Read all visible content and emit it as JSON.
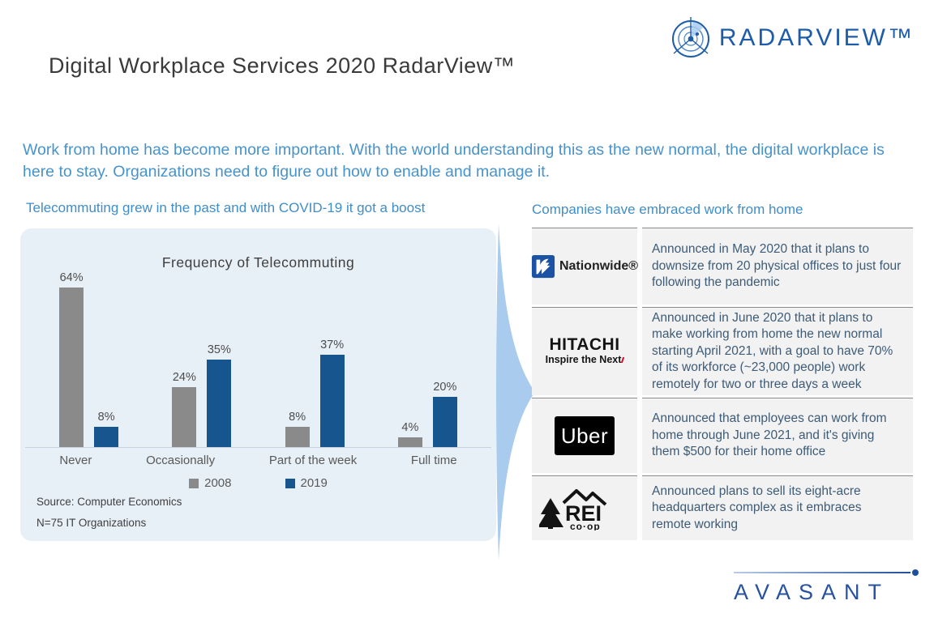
{
  "page": {
    "title": "Digital Workplace Services 2020 RadarView™",
    "intro": "Work from home has become more important. With the world understanding this as the new normal, the digital workplace is here to stay. Organizations need to figure out how to enable and manage it.",
    "left_heading": "Telecommuting grew in the past and with COVID-19 it got a boost",
    "right_heading": "Companies have embraced work from home"
  },
  "brand": {
    "radarview_logo_text": "RADARVIEW™",
    "avasant_logo_text": "AVASANT"
  },
  "chart_data": {
    "type": "bar",
    "title": "Frequency of Telecommuting",
    "categories": [
      "Never",
      "Occasionally",
      "Part of the week",
      "Full time"
    ],
    "series": [
      {
        "name": "2008",
        "color": "#8a8a8a",
        "values": [
          64,
          24,
          8,
          4
        ]
      },
      {
        "name": "2019",
        "color": "#17558f",
        "values": [
          8,
          35,
          37,
          20
        ]
      }
    ],
    "value_suffix": "%",
    "ylim": [
      0,
      70
    ],
    "grid": false,
    "legend_position": "bottom",
    "source_note": "Source: Computer Economics",
    "sample_note": "N=75 IT Organizations"
  },
  "companies": [
    {
      "name": "Nationwide",
      "logo_text": "Nationwide®",
      "description": "Announced in May 2020 that it plans to downsize from 20 physical offices to just four following the pandemic"
    },
    {
      "name": "Hitachi",
      "logo_main": "HITACHI",
      "logo_sub": "Inspire the Next",
      "description": "Announced in June 2020 that it plans to make working from home the new normal starting April 2021, with a goal to have 70% of its workforce (~23,000 people) work remotely for two or three days a week"
    },
    {
      "name": "Uber",
      "logo_text": "Uber",
      "description": "Announced that employees can work from home through June 2021, and it's giving them $500 for their home office"
    },
    {
      "name": "REI Co-op",
      "logo_main": "REI",
      "logo_sub": "co·op",
      "description": "Announced plans to sell its eight-acre headquarters complex as it embraces remote working"
    }
  ],
  "colors": {
    "accent_blue_text": "#4793cb",
    "bar_blue": "#17558f",
    "bar_gray": "#8a8a8a",
    "panel_bg": "#e7eff7",
    "row_bg": "#f2f2f2",
    "brand_blue": "#1d5ca8"
  }
}
